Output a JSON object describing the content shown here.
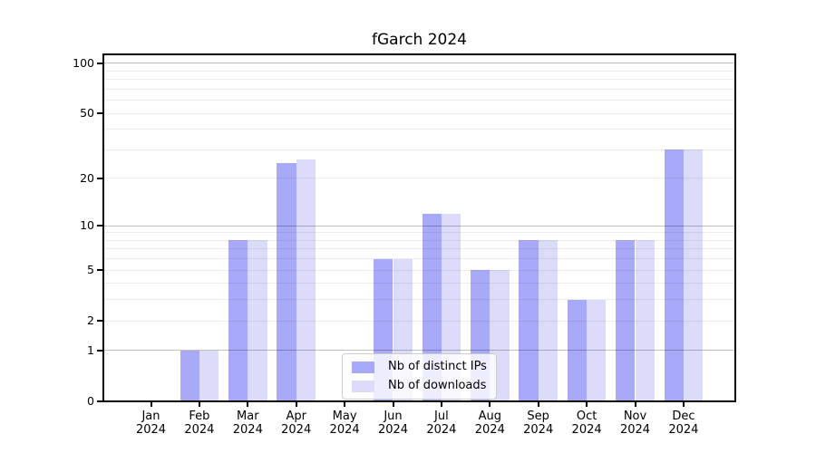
{
  "chart_data": {
    "type": "bar",
    "title": "fGarch 2024",
    "x_categories": [
      {
        "month": "Jan",
        "year": "2024"
      },
      {
        "month": "Feb",
        "year": "2024"
      },
      {
        "month": "Mar",
        "year": "2024"
      },
      {
        "month": "Apr",
        "year": "2024"
      },
      {
        "month": "May",
        "year": "2024"
      },
      {
        "month": "Jun",
        "year": "2024"
      },
      {
        "month": "Jul",
        "year": "2024"
      },
      {
        "month": "Aug",
        "year": "2024"
      },
      {
        "month": "Sep",
        "year": "2024"
      },
      {
        "month": "Oct",
        "year": "2024"
      },
      {
        "month": "Nov",
        "year": "2024"
      },
      {
        "month": "Dec",
        "year": "2024"
      }
    ],
    "series": [
      {
        "name": "Nb of distinct IPs",
        "color": "#a9a9fa",
        "values": [
          0,
          1,
          8,
          25,
          0,
          6,
          12,
          5,
          8,
          3,
          8,
          30
        ]
      },
      {
        "name": "Nb of downloads",
        "color": "#dcdcfa",
        "values": [
          0,
          1,
          8,
          26,
          0,
          6,
          12,
          5,
          8,
          3,
          8,
          30
        ]
      }
    ],
    "y_axis": {
      "scale": "log1p",
      "tick_values": [
        0,
        1,
        2,
        5,
        10,
        20,
        50,
        100
      ],
      "major_gridlines": [
        1,
        10,
        100
      ],
      "minor_gridlines": [
        2,
        3,
        4,
        5,
        6,
        7,
        8,
        9,
        20,
        30,
        40,
        50,
        60,
        70,
        80,
        90
      ],
      "max": 113
    },
    "grid_color_major": "rgba(0,0,0,0.25)",
    "grid_color_minor": "rgba(0,0,0,0.07)",
    "legend_position": "bottom-center",
    "grid": "on"
  }
}
